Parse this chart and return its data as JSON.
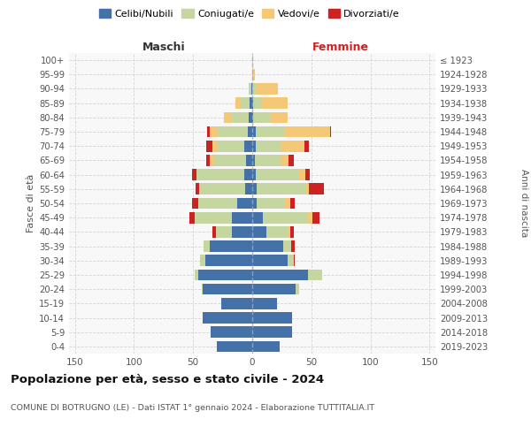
{
  "age_groups": [
    "0-4",
    "5-9",
    "10-14",
    "15-19",
    "20-24",
    "25-29",
    "30-34",
    "35-39",
    "40-44",
    "45-49",
    "50-54",
    "55-59",
    "60-64",
    "65-69",
    "70-74",
    "75-79",
    "80-84",
    "85-89",
    "90-94",
    "95-99",
    "100+"
  ],
  "birth_years": [
    "2019-2023",
    "2014-2018",
    "2009-2013",
    "2004-2008",
    "1999-2003",
    "1994-1998",
    "1989-1993",
    "1984-1988",
    "1979-1983",
    "1974-1978",
    "1969-1973",
    "1964-1968",
    "1959-1963",
    "1954-1958",
    "1949-1953",
    "1944-1948",
    "1939-1943",
    "1934-1938",
    "1929-1933",
    "1924-1928",
    "≤ 1923"
  ],
  "maschi": {
    "celibi": [
      30,
      35,
      42,
      26,
      42,
      46,
      40,
      36,
      17,
      17,
      13,
      6,
      7,
      5,
      7,
      4,
      3,
      2,
      1,
      0,
      0
    ],
    "coniugati": [
      0,
      0,
      0,
      0,
      1,
      3,
      4,
      5,
      14,
      32,
      33,
      39,
      40,
      28,
      23,
      25,
      14,
      8,
      1,
      0,
      0
    ],
    "vedovi": [
      0,
      0,
      0,
      0,
      0,
      0,
      0,
      0,
      0,
      0,
      0,
      0,
      0,
      3,
      4,
      7,
      7,
      4,
      1,
      0,
      0
    ],
    "divorziati": [
      0,
      0,
      0,
      0,
      0,
      0,
      0,
      0,
      3,
      4,
      5,
      3,
      4,
      3,
      5,
      2,
      0,
      0,
      0,
      0,
      0
    ]
  },
  "femmine": {
    "nubili": [
      23,
      34,
      34,
      21,
      37,
      47,
      30,
      26,
      12,
      9,
      4,
      4,
      3,
      2,
      3,
      3,
      1,
      1,
      0,
      0,
      0
    ],
    "coniugate": [
      0,
      0,
      0,
      0,
      3,
      12,
      5,
      7,
      18,
      38,
      24,
      42,
      37,
      23,
      21,
      25,
      14,
      7,
      4,
      1,
      0
    ],
    "vedove": [
      0,
      0,
      0,
      0,
      0,
      0,
      0,
      0,
      2,
      4,
      4,
      2,
      5,
      6,
      20,
      38,
      15,
      22,
      18,
      1,
      1
    ],
    "divorziate": [
      0,
      0,
      0,
      0,
      0,
      0,
      1,
      3,
      3,
      6,
      4,
      13,
      4,
      4,
      4,
      1,
      0,
      0,
      0,
      0,
      0
    ]
  },
  "colors": {
    "celibi": "#4472a8",
    "coniugati": "#c5d6a0",
    "vedovi": "#f5c878",
    "divorziati": "#cc2222"
  },
  "xlim": 155,
  "title": "Popolazione per età, sesso e stato civile - 2024",
  "subtitle": "COMUNE DI BOTRUGNO (LE) - Dati ISTAT 1° gennaio 2024 - Elaborazione TUTTITALIA.IT",
  "ylabel_left": "Fasce di età",
  "ylabel_right": "Anni di nascita",
  "xlabel_left": "Maschi",
  "xlabel_right": "Femmine",
  "bg_color": "#f8f8f8",
  "grid_color": "#cccccc"
}
